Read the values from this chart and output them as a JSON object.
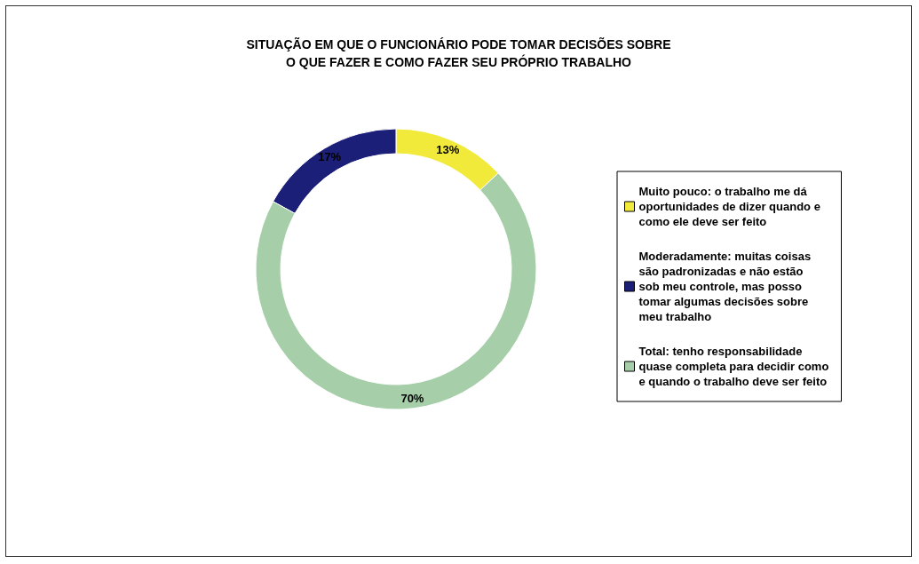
{
  "chart_data": {
    "type": "donut",
    "title": "SITUAÇÃO EM QUE O FUNCIONÁRIO PODE TOMAR DECISÕES SOBRE\nO QUE FAZER E COMO FAZER SEU PRÓPRIO TRABALHO",
    "categories": [
      "Muito pouco: o trabalho me dá oportunidades de dizer quando e como ele deve ser feito",
      "Moderadamente: muitas coisas são padronizadas e não estão sob meu controle, mas posso tomar algumas decisões sobre meu trabalho",
      "Total: tenho responsabilidade quase completa para decidir como e quando o trabalho deve ser feito"
    ],
    "values": [
      13,
      17,
      70
    ],
    "colors": [
      "#f2ea3a",
      "#1c1f78",
      "#a6cfa9"
    ],
    "value_labels": [
      "13%",
      "17%",
      "70%"
    ],
    "legend": "right"
  }
}
